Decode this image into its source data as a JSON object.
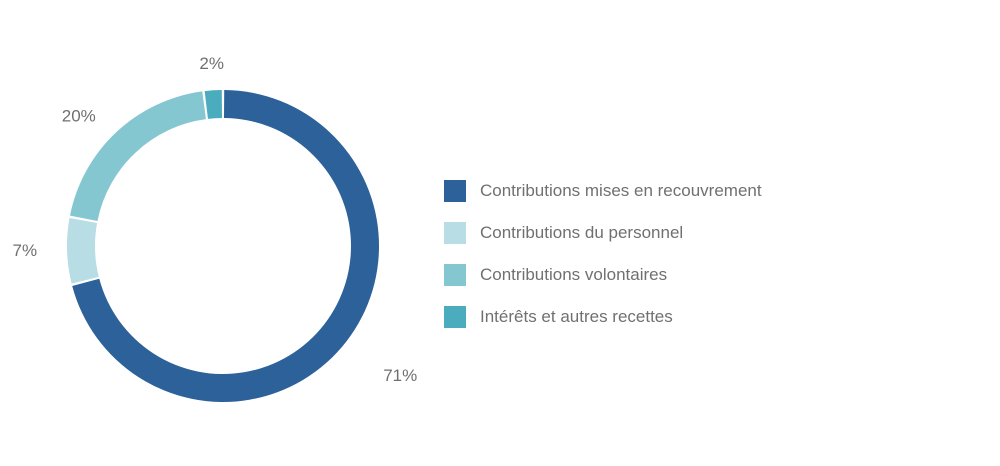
{
  "chart_data": {
    "type": "pie",
    "variant": "donut",
    "categories": [
      "Contributions mises en recouvrement",
      "Contributions du personnel",
      "Contributions volontaires",
      "Intérêts et autres recettes"
    ],
    "values": [
      71,
      7,
      20,
      2
    ],
    "value_labels": [
      "71%",
      "7%",
      "20%",
      "2%"
    ],
    "colors": [
      "#2c6199",
      "#b8dde5",
      "#85c7d1",
      "#4bacbd"
    ],
    "legend_placement": "right",
    "title": ""
  }
}
